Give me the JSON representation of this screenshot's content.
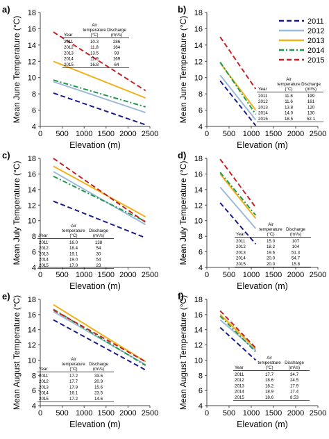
{
  "colors": {
    "2011": "#1a1a8c",
    "2012": "#9dbbd8",
    "2013": "#f0b21c",
    "2014": "#1f9a4a",
    "2015": "#c42326"
  },
  "legend": [
    "2011",
    "2012",
    "2013",
    "2014",
    "2015"
  ],
  "table_headers": {
    "year": "Year",
    "air": "Air",
    "temperature": "temperature",
    "unit": "(°C)",
    "discharge": "Discharge",
    "discharge_unit": "(m³/s)"
  },
  "chart_data": [
    {
      "panel": "a)",
      "type": "line",
      "ylabel": "Mean June Temperature (°C)",
      "xlabel": "Elevation (m)",
      "xlim": [
        0,
        2500
      ],
      "ylim": [
        4,
        18
      ],
      "xticks": [
        0,
        500,
        1000,
        1500,
        2000,
        2500
      ],
      "yticks": [
        4,
        6,
        8,
        10,
        12,
        14,
        16,
        18
      ],
      "series": [
        {
          "name": "2011",
          "x": [
            300,
            2400
          ],
          "y": [
            8.1,
            4.2
          ]
        },
        {
          "name": "2012",
          "x": [
            300,
            2400
          ],
          "y": [
            9.5,
            5.7
          ]
        },
        {
          "name": "2013",
          "x": [
            300,
            2400
          ],
          "y": [
            12.0,
            7.5
          ]
        },
        {
          "name": "2014",
          "x": [
            300,
            2400
          ],
          "y": [
            9.7,
            6.4
          ]
        },
        {
          "name": "2015",
          "x": [
            300,
            2400
          ],
          "y": [
            15.6,
            8.4
          ]
        }
      ],
      "table": [
        [
          "2011",
          "10.3",
          "286"
        ],
        [
          "2012",
          "11.8",
          "164"
        ],
        [
          "2013",
          "13.5",
          "93"
        ],
        [
          "2014",
          "11.9",
          "169"
        ],
        [
          "2015",
          "16.8",
          "64"
        ]
      ]
    },
    {
      "panel": "b)",
      "type": "line",
      "ylabel": "Mean June Temperature (°C)",
      "xlabel": "Elevation (m)",
      "xlim": [
        0,
        2500
      ],
      "ylim": [
        4,
        18
      ],
      "xticks": [
        0,
        500,
        1000,
        1500,
        2000,
        2500
      ],
      "yticks": [
        4,
        6,
        8,
        10,
        12,
        14,
        16,
        18
      ],
      "series": [
        {
          "name": "2011",
          "x": [
            300,
            1100
          ],
          "y": [
            9.6,
            4.1
          ]
        },
        {
          "name": "2012",
          "x": [
            300,
            1100
          ],
          "y": [
            10.3,
            4.8
          ]
        },
        {
          "name": "2013",
          "x": [
            300,
            1100
          ],
          "y": [
            11.8,
            6.0
          ]
        },
        {
          "name": "2014",
          "x": [
            300,
            1100
          ],
          "y": [
            11.9,
            5.5
          ]
        },
        {
          "name": "2015",
          "x": [
            300,
            1100
          ],
          "y": [
            15.0,
            8.6
          ]
        }
      ],
      "table": [
        [
          "2011",
          "11.8",
          "199"
        ],
        [
          "2012",
          "11.6",
          "161"
        ],
        [
          "2013",
          "13.8",
          "120"
        ],
        [
          "2014",
          "14.0",
          "130"
        ],
        [
          "2015",
          "18.5",
          "52.1"
        ]
      ]
    },
    {
      "panel": "c)",
      "type": "line",
      "ylabel": "Mean July Temperature (°C)",
      "xlabel": "Elevation (m)",
      "xlim": [
        0,
        2500
      ],
      "ylim": [
        4,
        18
      ],
      "xticks": [
        0,
        500,
        1000,
        1500,
        2000,
        2500
      ],
      "yticks": [
        4,
        6,
        8,
        10,
        12,
        14,
        16,
        18
      ],
      "series": [
        {
          "name": "2011",
          "x": [
            300,
            2400
          ],
          "y": [
            12.5,
            7.8
          ]
        },
        {
          "name": "2012",
          "x": [
            300,
            2400
          ],
          "y": [
            16.3,
            9.5
          ]
        },
        {
          "name": "2013",
          "x": [
            300,
            2400
          ],
          "y": [
            17.0,
            10.5
          ]
        },
        {
          "name": "2014",
          "x": [
            300,
            2400
          ],
          "y": [
            15.7,
            9.9
          ]
        },
        {
          "name": "2015",
          "x": [
            300,
            2400
          ],
          "y": [
            18.0,
            9.8
          ]
        }
      ],
      "table": [
        [
          "2011",
          "16.0",
          "138"
        ],
        [
          "2012",
          "18.4",
          "54"
        ],
        [
          "2013",
          "19.1",
          "30"
        ],
        [
          "2014",
          "19.0",
          "54"
        ],
        [
          "2015",
          "17.0",
          "23"
        ]
      ]
    },
    {
      "panel": "d)",
      "type": "line",
      "ylabel": "Mean July Temperature (°C)",
      "xlabel": "Elevation (m)",
      "xlim": [
        0,
        2500
      ],
      "ylim": [
        4,
        18
      ],
      "xticks": [
        0,
        500,
        1000,
        1500,
        2000,
        2500
      ],
      "yticks": [
        4,
        6,
        8,
        10,
        12,
        14,
        16,
        18
      ],
      "series": [
        {
          "name": "2011",
          "x": [
            300,
            1100
          ],
          "y": [
            12.3,
            7.0
          ]
        },
        {
          "name": "2012",
          "x": [
            300,
            1100
          ],
          "y": [
            14.3,
            9.0
          ]
        },
        {
          "name": "2013",
          "x": [
            300,
            1100
          ],
          "y": [
            16.0,
            10.3
          ]
        },
        {
          "name": "2014",
          "x": [
            300,
            1100
          ],
          "y": [
            16.2,
            10.7
          ]
        },
        {
          "name": "2015",
          "x": [
            300,
            1100
          ],
          "y": [
            17.9,
            11.7
          ]
        }
      ],
      "table": [
        [
          "2011",
          "15.0",
          "107"
        ],
        [
          "2012",
          "18.2",
          "104"
        ],
        [
          "2013",
          "19.6",
          "51.3"
        ],
        [
          "2014",
          "20.0",
          "54.7"
        ],
        [
          "2015",
          "20.0",
          "15.8"
        ]
      ]
    },
    {
      "panel": "e)",
      "type": "line",
      "ylabel": "Mean August Temperature (°C)",
      "xlabel": "Elevation (m)",
      "xlim": [
        0,
        2500
      ],
      "ylim": [
        4,
        18
      ],
      "xticks": [
        0,
        500,
        1000,
        1500,
        2000,
        2500
      ],
      "yticks": [
        4,
        6,
        8,
        10,
        12,
        14,
        16,
        18
      ],
      "series": [
        {
          "name": "2011",
          "x": [
            300,
            2400
          ],
          "y": [
            15.3,
            8.7
          ]
        },
        {
          "name": "2012",
          "x": [
            300,
            2400
          ],
          "y": [
            16.4,
            9.4
          ]
        },
        {
          "name": "2013",
          "x": [
            300,
            2400
          ],
          "y": [
            17.3,
            9.8
          ]
        },
        {
          "name": "2014",
          "x": [
            300,
            2400
          ],
          "y": [
            16.7,
            9.3
          ]
        },
        {
          "name": "2015",
          "x": [
            300,
            2400
          ],
          "y": [
            16.6,
            9.8
          ]
        }
      ],
      "table": [
        [
          "2011",
          "17.2",
          "33.6"
        ],
        [
          "2012",
          "17.7",
          "20.9"
        ],
        [
          "2013",
          "17.9",
          "15.6"
        ],
        [
          "2014",
          "16.1",
          "23.5"
        ],
        [
          "2015",
          "17.2",
          "14.6"
        ]
      ]
    },
    {
      "panel": "f)",
      "type": "line",
      "ylabel": "Mean August Temperature (°C)",
      "xlabel": "Elevation (m)",
      "xlim": [
        0,
        2500
      ],
      "ylim": [
        4,
        18
      ],
      "xticks": [
        0,
        500,
        1000,
        1500,
        2000,
        2500
      ],
      "yticks": [
        4,
        6,
        8,
        10,
        12,
        14,
        16,
        18
      ],
      "series": [
        {
          "name": "2011",
          "x": [
            300,
            1100
          ],
          "y": [
            14.3,
            10.0
          ]
        },
        {
          "name": "2012",
          "x": [
            300,
            1100
          ],
          "y": [
            15.3,
            11.3
          ]
        },
        {
          "name": "2013",
          "x": [
            300,
            1100
          ],
          "y": [
            16.0,
            11.5
          ]
        },
        {
          "name": "2014",
          "x": [
            300,
            1100
          ],
          "y": [
            15.8,
            11.1
          ]
        },
        {
          "name": "2015",
          "x": [
            300,
            1100
          ],
          "y": [
            16.5,
            11.6
          ]
        }
      ],
      "table": [
        [
          "2011",
          "17.7",
          "34.7"
        ],
        [
          "2012",
          "18.6",
          "24.5"
        ],
        [
          "2013",
          "18.2",
          "17.9"
        ],
        [
          "2014",
          "18.9",
          "17.4"
        ],
        [
          "2015",
          "18.6",
          "8.53"
        ]
      ]
    }
  ]
}
